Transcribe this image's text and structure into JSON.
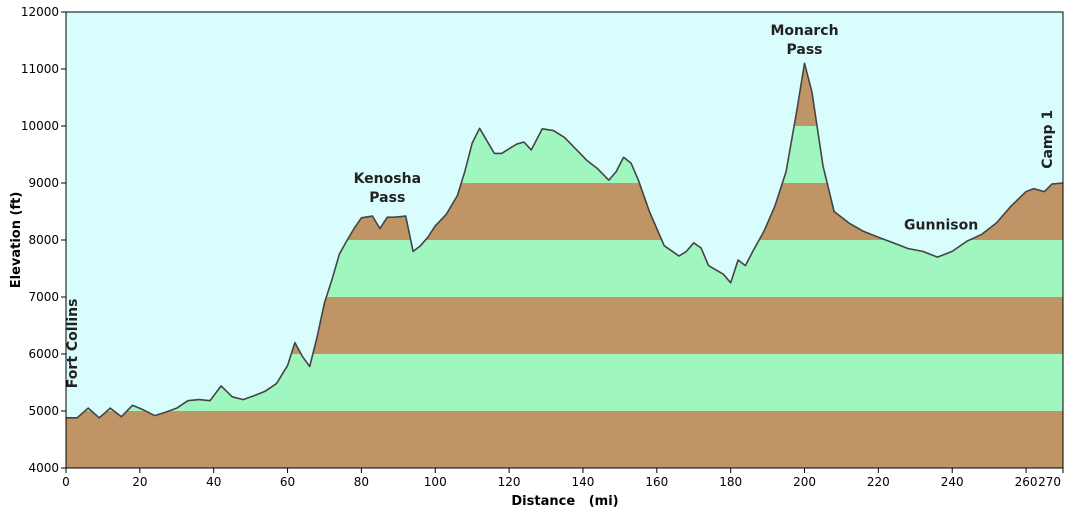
{
  "chart_data": {
    "type": "area",
    "xlabel": "Distance   (mi)",
    "ylabel": "Elevation (ft)",
    "xlim": [
      0,
      270
    ],
    "ylim": [
      4000,
      12000
    ],
    "xticks": [
      0,
      20,
      40,
      60,
      80,
      100,
      120,
      140,
      160,
      180,
      200,
      220,
      240,
      260,
      270
    ],
    "yticks": [
      4000,
      5000,
      6000,
      7000,
      8000,
      9000,
      10000,
      11000,
      12000
    ],
    "band_interval": 1000,
    "colors": {
      "sky": "#d9fdfd",
      "band_brown": "#bf9565",
      "band_green": "#9ff7bf",
      "profile_line": "#444444"
    },
    "x": [
      0,
      3,
      6,
      9,
      12,
      15,
      18,
      21,
      24,
      27,
      30,
      33,
      36,
      39,
      42,
      45,
      48,
      51,
      54,
      57,
      60,
      62,
      64,
      66,
      68,
      70,
      72,
      74,
      76,
      78,
      80,
      83,
      85,
      87,
      89,
      92,
      94,
      96,
      98,
      100,
      103,
      106,
      108,
      110,
      112,
      116,
      118,
      122,
      124,
      126,
      129,
      132,
      135,
      138,
      141,
      144,
      147,
      149,
      151,
      153,
      155,
      158,
      162,
      166,
      168,
      170,
      172,
      174,
      178,
      180,
      182,
      184,
      186,
      189,
      192,
      195,
      198,
      200,
      202,
      205,
      208,
      212,
      216,
      220,
      224,
      228,
      232,
      236,
      240,
      244,
      248,
      252,
      256,
      260,
      262,
      265,
      267,
      270
    ],
    "elevation": [
      4880,
      4880,
      5050,
      4880,
      5050,
      4900,
      5100,
      5020,
      4920,
      4980,
      5050,
      5180,
      5200,
      5180,
      5440,
      5250,
      5200,
      5270,
      5350,
      5480,
      5800,
      6200,
      5960,
      5780,
      6300,
      6900,
      7300,
      7750,
      7980,
      8200,
      8390,
      8420,
      8200,
      8400,
      8400,
      8420,
      7800,
      7900,
      8050,
      8250,
      8450,
      8780,
      9200,
      9700,
      9960,
      9520,
      9520,
      9680,
      9720,
      9580,
      9950,
      9920,
      9800,
      9600,
      9400,
      9250,
      9050,
      9200,
      9450,
      9350,
      9050,
      8500,
      7900,
      7720,
      7800,
      7950,
      7860,
      7550,
      7400,
      7250,
      7650,
      7550,
      7800,
      8150,
      8600,
      9200,
      10300,
      11100,
      10600,
      9300,
      8500,
      8300,
      8150,
      8050,
      7950,
      7850,
      7800,
      7700,
      7800,
      7980,
      8100,
      8300,
      8600,
      8850,
      8900,
      8850,
      8980,
      9000
    ],
    "annotations": [
      {
        "lines": [
          "Fort Collins"
        ],
        "x": 3,
        "y": 5400,
        "rotate": -90
      },
      {
        "lines": [
          "Kenosha",
          "Pass"
        ],
        "x": 87,
        "y": 9000,
        "rotate": 0
      },
      {
        "lines": [
          "Monarch",
          "Pass"
        ],
        "x": 200,
        "y": 11600,
        "rotate": 0
      },
      {
        "lines": [
          "Gunnison"
        ],
        "x": 237,
        "y": 8180,
        "rotate": 0
      },
      {
        "lines": [
          "Camp 1"
        ],
        "x": 267,
        "y": 9250,
        "rotate": -90
      }
    ]
  }
}
